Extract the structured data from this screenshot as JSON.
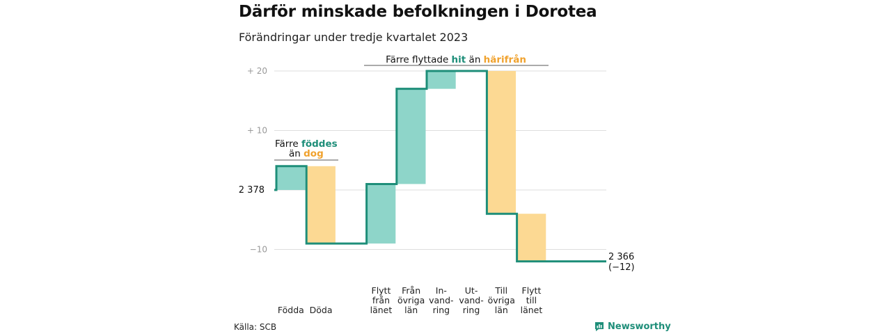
{
  "title": "Därför minskade befolkningen i Dorotea",
  "subtitle": "Förändringar under tredje kvartalet 2023",
  "source": "Källa: SCB",
  "brand": "Newsworthy",
  "colors": {
    "increase": "#8ed5c9",
    "decrease": "#fcd993",
    "line": "#1e8e79",
    "teal_text": "#1e8e79",
    "orange_text": "#f0a22e",
    "grid": "#dddddd"
  },
  "annotations": {
    "births": {
      "prefix": "Färre ",
      "hit": "föddes",
      "mid": "än ",
      "dog": "dog"
    },
    "moves": {
      "prefix": "Färre flyttade ",
      "hit": "hit",
      "mid": " än ",
      "away": "härifrån"
    }
  },
  "chart_data": {
    "type": "waterfall",
    "title": "Därför minskade befolkningen i Dorotea",
    "subtitle": "Förändringar under tredje kvartalet 2023",
    "start_value": 2378,
    "start_label": "2 378",
    "end_value": 2366,
    "end_label": "2 366",
    "end_change_label": "(−12)",
    "yticks": [
      {
        "value": 20,
        "label": "+  20"
      },
      {
        "value": 10,
        "label": "+  10"
      },
      {
        "value": -10,
        "label": "−10"
      }
    ],
    "ylim": [
      -12,
      20
    ],
    "categories": [
      {
        "label": [
          "Födda"
        ],
        "change": 4
      },
      {
        "label": [
          "Döda"
        ],
        "change": -13
      },
      {
        "label": [],
        "change": 0
      },
      {
        "label": [
          "Flytt",
          "från",
          "länet"
        ],
        "change": 10
      },
      {
        "label": [
          "Från",
          "övriga",
          "län"
        ],
        "change": 16
      },
      {
        "label": [
          "In-",
          "vand-",
          "ring"
        ],
        "change": 3
      },
      {
        "label": [
          "Ut-",
          "vand-",
          "ring"
        ],
        "change": 0
      },
      {
        "label": [
          "Till",
          "övriga",
          "län"
        ],
        "change": -24
      },
      {
        "label": [
          "Flytt",
          "till",
          "länet"
        ],
        "change": -8
      }
    ]
  }
}
